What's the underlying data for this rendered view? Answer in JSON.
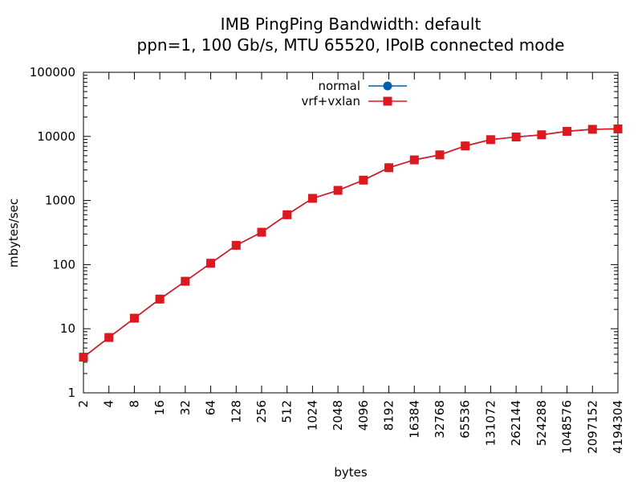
{
  "chart_data": {
    "type": "line",
    "title": "IMB PingPing Bandwidth: default",
    "subtitle": "ppn=1, 100 Gb/s, MTU 65520, IPoIB connected mode",
    "xlabel": "bytes",
    "ylabel": "mbytes/sec",
    "x_scale": "log",
    "y_scale": "log",
    "xlim": [
      2,
      4194304
    ],
    "ylim": [
      1,
      100000
    ],
    "x_ticks": [
      "2",
      "4",
      "8",
      "16",
      "32",
      "64",
      "128",
      "256",
      "512",
      "1024",
      "2048",
      "4096",
      "8192",
      "16384",
      "32768",
      "65536",
      "131072",
      "262144",
      "524288",
      "1048576",
      "2097152",
      "4194304"
    ],
    "y_ticks": [
      "1",
      "10",
      "100",
      "1000",
      "10000",
      "100000"
    ],
    "legend_position": "top-center",
    "grid": false,
    "x": [
      2,
      4,
      8,
      16,
      32,
      64,
      128,
      256,
      512,
      1024,
      2048,
      4096,
      8192,
      16384,
      32768,
      65536,
      131072,
      262144,
      524288,
      1048576,
      2097152,
      4194304
    ],
    "series": [
      {
        "name": "normal",
        "color": "#0060ad",
        "marker": "circle",
        "values": [
          3.6,
          7.3,
          14.6,
          29,
          55,
          105,
          200,
          320,
          600,
          1080,
          1440,
          2080,
          3250,
          4300,
          5150,
          7100,
          8900,
          9800,
          10600,
          12000,
          12900,
          13100
        ]
      },
      {
        "name": "vrf+vxlan",
        "color": "#dd181f",
        "marker": "square",
        "values": [
          3.6,
          7.3,
          14.6,
          29,
          55,
          105,
          200,
          320,
          600,
          1080,
          1440,
          2080,
          3250,
          4300,
          5150,
          7100,
          8900,
          9800,
          10600,
          12000,
          12900,
          13100
        ]
      }
    ]
  }
}
